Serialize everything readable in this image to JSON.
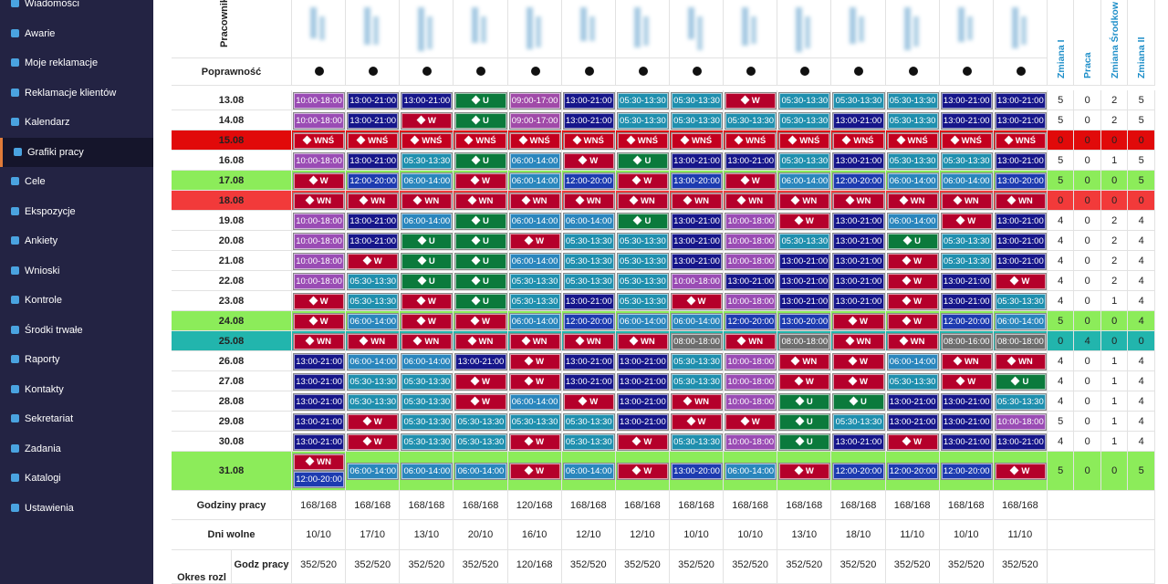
{
  "sidebar": {
    "items": [
      "Wiadomości",
      "Awarie",
      "Moje reklamacje",
      "Reklamacje klientów",
      "Kalendarz",
      "Grafiki pracy",
      "Cele",
      "Ekspozycje",
      "Ankiety",
      "Wnioski",
      "Kontrole",
      "Środki trwałe",
      "Raporty",
      "Kontakty",
      "Sekretariat",
      "Zadania",
      "Katalogi",
      "Ustawienia"
    ],
    "active": 5
  },
  "table": {
    "employee_header": "Pracownik",
    "correctness_label": "Poprawność",
    "employee_count": 14,
    "totals_headers": [
      "Zmiana I",
      "Praca",
      "Zmiana Środkowa",
      "Zmiana II"
    ],
    "shift_colors": {
      "13:00-21:00": "#16168a",
      "10:00-18:00": "#9a4cb4",
      "09:00-17:00": "#a04aa8",
      "05:30-13:30": "#1f8fae",
      "06:00-14:00": "#2a86bd",
      "12:00-20:00": "#1d3bb0",
      "13:00-20:00": "#1d3bb0",
      "08:00-18:00": "#6d6d6d",
      "08:00-16:00": "#6d6d6d",
      "W": "#b5002b",
      "WN": "#b5002b",
      "WNŚ": "#c3001f",
      "U": "#0b7a3c"
    },
    "rows": [
      {
        "date": "13.08",
        "shifts": [
          "10:00-18:00",
          "13:00-21:00",
          "13:00-21:00",
          "U",
          "09:00-17:00",
          "13:00-21:00",
          "05:30-13:30",
          "05:30-13:30",
          "W",
          "05:30-13:30",
          "05:30-13:30",
          "05:30-13:30",
          "13:00-21:00",
          "13:00-21:00"
        ],
        "totals": [
          5,
          0,
          2,
          5
        ]
      },
      {
        "date": "14.08",
        "shifts": [
          "10:00-18:00",
          "13:00-21:00",
          "W",
          "U",
          "09:00-17:00",
          "13:00-21:00",
          "05:30-13:30",
          "05:30-13:30",
          "05:30-13:30",
          "05:30-13:30",
          "13:00-21:00",
          "05:30-13:30",
          "13:00-21:00",
          "13:00-21:00"
        ],
        "totals": [
          5,
          0,
          2,
          5
        ]
      },
      {
        "date": "15.08",
        "highlight": "#e10a0a",
        "shifts": [
          "WNŚ",
          "WNŚ",
          "WNŚ",
          "WNŚ",
          "WNŚ",
          "WNŚ",
          "WNŚ",
          "WNŚ",
          "WNŚ",
          "WNŚ",
          "WNŚ",
          "WNŚ",
          "WNŚ",
          "WNŚ"
        ],
        "totals": [
          0,
          0,
          0,
          0
        ]
      },
      {
        "date": "16.08",
        "shifts": [
          "10:00-18:00",
          "13:00-21:00",
          "05:30-13:30",
          "U",
          "06:00-14:00",
          "W",
          "U",
          "13:00-21:00",
          "13:00-21:00",
          "05:30-13:30",
          "13:00-21:00",
          "05:30-13:30",
          "05:30-13:30",
          "13:00-21:00"
        ],
        "totals": [
          5,
          0,
          1,
          5
        ]
      },
      {
        "date": "17.08",
        "highlight": "#8cec5a",
        "shifts": [
          "W",
          "12:00-20:00",
          "06:00-14:00",
          "W",
          "06:00-14:00",
          "12:00-20:00",
          "W",
          "13:00-20:00",
          "W",
          "06:00-14:00",
          "12:00-20:00",
          "06:00-14:00",
          "06:00-14:00",
          "13:00-20:00"
        ],
        "totals": [
          5,
          0,
          0,
          5
        ]
      },
      {
        "date": "18.08",
        "highlight": "#f23a3a",
        "shifts": [
          "WN",
          "WN",
          "WN",
          "WN",
          "WN",
          "WN",
          "WN",
          "WN",
          "WN",
          "WN",
          "WN",
          "WN",
          "WN",
          "WN"
        ],
        "totals": [
          0,
          0,
          0,
          0
        ]
      },
      {
        "date": "19.08",
        "shifts": [
          "10:00-18:00",
          "13:00-21:00",
          "06:00-14:00",
          "U",
          "06:00-14:00",
          "06:00-14:00",
          "U",
          "13:00-21:00",
          "10:00-18:00",
          "W",
          "13:00-21:00",
          "06:00-14:00",
          "W",
          "13:00-21:00"
        ],
        "totals": [
          4,
          0,
          2,
          4
        ]
      },
      {
        "date": "20.08",
        "shifts": [
          "10:00-18:00",
          "13:00-21:00",
          "U",
          "U",
          "W",
          "05:30-13:30",
          "05:30-13:30",
          "13:00-21:00",
          "10:00-18:00",
          "05:30-13:30",
          "13:00-21:00",
          "U",
          "05:30-13:30",
          "13:00-21:00"
        ],
        "totals": [
          4,
          0,
          2,
          4
        ]
      },
      {
        "date": "21.08",
        "shifts": [
          "10:00-18:00",
          "W",
          "U",
          "U",
          "06:00-14:00",
          "05:30-13:30",
          "05:30-13:30",
          "13:00-21:00",
          "10:00-18:00",
          "13:00-21:00",
          "13:00-21:00",
          "W",
          "05:30-13:30",
          "13:00-21:00"
        ],
        "totals": [
          4,
          0,
          2,
          4
        ]
      },
      {
        "date": "22.08",
        "shifts": [
          "10:00-18:00",
          "05:30-13:30",
          "U",
          "U",
          "05:30-13:30",
          "05:30-13:30",
          "05:30-13:30",
          "10:00-18:00",
          "13:00-21:00",
          "13:00-21:00",
          "13:00-21:00",
          "W",
          "13:00-21:00",
          "W"
        ],
        "totals": [
          4,
          0,
          2,
          4
        ]
      },
      {
        "date": "23.08",
        "shifts": [
          "W",
          "05:30-13:30",
          "W",
          "U",
          "05:30-13:30",
          "13:00-21:00",
          "05:30-13:30",
          "W",
          "10:00-18:00",
          "13:00-21:00",
          "13:00-21:00",
          "W",
          "13:00-21:00",
          "05:30-13:30"
        ],
        "totals": [
          4,
          0,
          1,
          4
        ]
      },
      {
        "date": "24.08",
        "highlight": "#8cec5a",
        "shifts": [
          "W",
          "06:00-14:00",
          "W",
          "W",
          "06:00-14:00",
          "12:00-20:00",
          "06:00-14:00",
          "06:00-14:00",
          "12:00-20:00",
          "13:00-20:00",
          "W",
          "W",
          "12:00-20:00",
          "06:00-14:00"
        ],
        "totals": [
          5,
          0,
          0,
          4
        ]
      },
      {
        "date": "25.08",
        "highlight": "#22b5ad",
        "shifts": [
          "WN",
          "WN",
          "WN",
          "WN",
          "WN",
          "WN",
          "WN",
          "08:00-18:00",
          "WN",
          "08:00-18:00",
          "WN",
          "WN",
          "08:00-16:00",
          "08:00-18:00"
        ],
        "totals": [
          0,
          4,
          0,
          0
        ]
      },
      {
        "date": "26.08",
        "shifts": [
          "13:00-21:00",
          "06:00-14:00",
          "06:00-14:00",
          "13:00-21:00",
          "W",
          "13:00-21:00",
          "13:00-21:00",
          "05:30-13:30",
          "10:00-18:00",
          "WN",
          "W",
          "06:00-14:00",
          "WN",
          "WN"
        ],
        "totals": [
          4,
          0,
          1,
          4
        ]
      },
      {
        "date": "27.08",
        "shifts": [
          "13:00-21:00",
          "05:30-13:30",
          "05:30-13:30",
          "W",
          "W",
          "13:00-21:00",
          "13:00-21:00",
          "05:30-13:30",
          "10:00-18:00",
          "W",
          "W",
          "05:30-13:30",
          "W",
          "U"
        ],
        "totals": [
          4,
          0,
          1,
          4
        ]
      },
      {
        "date": "28.08",
        "shifts": [
          "13:00-21:00",
          "05:30-13:30",
          "05:30-13:30",
          "W",
          "06:00-14:00",
          "W",
          "13:00-21:00",
          "WN",
          "10:00-18:00",
          "U",
          "U",
          "13:00-21:00",
          "13:00-21:00",
          "05:30-13:30"
        ],
        "totals": [
          4,
          0,
          1,
          4
        ]
      },
      {
        "date": "29.08",
        "shifts": [
          "13:00-21:00",
          "W",
          "05:30-13:30",
          "05:30-13:30",
          "05:30-13:30",
          "05:30-13:30",
          "13:00-21:00",
          "W",
          "W",
          "U",
          "05:30-13:30",
          "13:00-21:00",
          "13:00-21:00",
          "10:00-18:00"
        ],
        "totals": [
          5,
          0,
          1,
          4
        ]
      },
      {
        "date": "30.08",
        "shifts": [
          "13:00-21:00",
          "W",
          "05:30-13:30",
          "05:30-13:30",
          "W",
          "05:30-13:30",
          "W",
          "05:30-13:30",
          "10:00-18:00",
          "U",
          "13:00-21:00",
          "W",
          "13:00-21:00",
          "13:00-21:00"
        ],
        "totals": [
          4,
          0,
          1,
          4
        ]
      },
      {
        "date": "31.08",
        "highlight": "#8cec5a",
        "shifts": [
          [
            "WN",
            "12:00-20:00"
          ],
          "06:00-14:00",
          "06:00-14:00",
          "06:00-14:00",
          "W",
          "06:00-14:00",
          "W",
          "13:00-20:00",
          "06:00-14:00",
          "W",
          "12:00-20:00",
          "12:00-20:00",
          "12:00-20:00",
          "W"
        ],
        "totals": [
          5,
          0,
          0,
          5
        ]
      }
    ],
    "summary_rows": [
      {
        "label": "Godziny pracy",
        "values": [
          "168/168",
          "168/168",
          "168/168",
          "168/168",
          "120/168",
          "168/168",
          "168/168",
          "168/168",
          "168/168",
          "168/168",
          "168/168",
          "168/168",
          "168/168",
          "168/168"
        ]
      },
      {
        "label": "Dni wolne",
        "values": [
          "10/10",
          "17/10",
          "13/10",
          "20/10",
          "16/10",
          "12/10",
          "12/10",
          "10/10",
          "10/10",
          "13/10",
          "18/10",
          "11/10",
          "10/10",
          "11/10"
        ]
      },
      {
        "group": "Okres rozl",
        "label": "Godz pracy",
        "values": [
          "352/520",
          "352/520",
          "352/520",
          "352/520",
          "120/168",
          "352/520",
          "352/520",
          "352/520",
          "352/520",
          "352/520",
          "352/520",
          "352/520",
          "352/520",
          "352/520"
        ]
      }
    ]
  }
}
